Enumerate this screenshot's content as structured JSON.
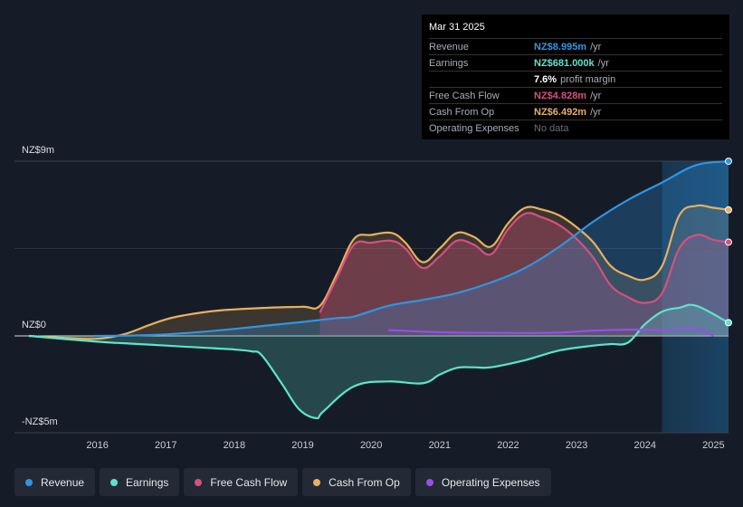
{
  "chart_data": {
    "type": "area",
    "y_axis": {
      "top_label": "NZ$9m",
      "zero_label": "NZ$0",
      "bottom_label": "-NZ$5m",
      "ylim": [
        -5,
        9
      ]
    },
    "x_axis": {
      "ticks": [
        "2016",
        "2017",
        "2018",
        "2019",
        "2020",
        "2021",
        "2022",
        "2023",
        "2024",
        "2025"
      ],
      "xlim": [
        2015.0,
        2025.22
      ]
    },
    "forecast_shade_from": 2024.25,
    "series": [
      {
        "name": "Revenue",
        "color": "#2f95e4",
        "points": [
          [
            2015.95,
            0.0
          ],
          [
            2016.5,
            0.02
          ],
          [
            2017.0,
            0.08
          ],
          [
            2017.5,
            0.2
          ],
          [
            2018.0,
            0.36
          ],
          [
            2018.5,
            0.54
          ],
          [
            2019.0,
            0.72
          ],
          [
            2019.5,
            0.92
          ],
          [
            2019.75,
            1.0
          ],
          [
            2020.25,
            1.55
          ],
          [
            2020.75,
            1.85
          ],
          [
            2021.25,
            2.2
          ],
          [
            2021.75,
            2.75
          ],
          [
            2022.25,
            3.5
          ],
          [
            2022.75,
            4.6
          ],
          [
            2023.25,
            5.9
          ],
          [
            2023.75,
            7.0
          ],
          [
            2024.25,
            7.9
          ],
          [
            2024.75,
            8.8
          ],
          [
            2025.22,
            8.995
          ]
        ]
      },
      {
        "name": "Earnings",
        "color": "#5ee3cb",
        "points": [
          [
            2015.0,
            0.0
          ],
          [
            2016.0,
            -0.3
          ],
          [
            2016.5,
            -0.4
          ],
          [
            2017.0,
            -0.5
          ],
          [
            2017.5,
            -0.6
          ],
          [
            2018.0,
            -0.7
          ],
          [
            2018.25,
            -0.8
          ],
          [
            2018.4,
            -1.0
          ],
          [
            2018.7,
            -2.5
          ],
          [
            2018.95,
            -3.8
          ],
          [
            2019.2,
            -4.25
          ],
          [
            2019.3,
            -3.9
          ],
          [
            2019.75,
            -2.6
          ],
          [
            2020.25,
            -2.35
          ],
          [
            2020.75,
            -2.45
          ],
          [
            2021.0,
            -2.0
          ],
          [
            2021.25,
            -1.65
          ],
          [
            2021.5,
            -1.62
          ],
          [
            2021.75,
            -1.62
          ],
          [
            2022.25,
            -1.25
          ],
          [
            2022.75,
            -0.75
          ],
          [
            2023.25,
            -0.5
          ],
          [
            2023.5,
            -0.42
          ],
          [
            2023.75,
            -0.35
          ],
          [
            2024.0,
            0.6
          ],
          [
            2024.25,
            1.25
          ],
          [
            2024.5,
            1.45
          ],
          [
            2024.75,
            1.55
          ],
          [
            2025.22,
            0.681
          ]
        ]
      },
      {
        "name": "Free Cash Flow",
        "color": "#d64f7f",
        "points": [
          [
            2019.25,
            1.2
          ],
          [
            2019.5,
            3.0
          ],
          [
            2019.75,
            4.7
          ],
          [
            2020.0,
            4.8
          ],
          [
            2020.3,
            4.9
          ],
          [
            2020.5,
            4.5
          ],
          [
            2020.75,
            3.5
          ],
          [
            2021.0,
            4.1
          ],
          [
            2021.25,
            4.9
          ],
          [
            2021.5,
            4.7
          ],
          [
            2021.75,
            4.2
          ],
          [
            2022.0,
            5.5
          ],
          [
            2022.25,
            6.3
          ],
          [
            2022.5,
            6.1
          ],
          [
            2022.75,
            5.7
          ],
          [
            2023.0,
            5.0
          ],
          [
            2023.25,
            4.0
          ],
          [
            2023.5,
            2.6
          ],
          [
            2023.75,
            2.0
          ],
          [
            2024.0,
            1.7
          ],
          [
            2024.25,
            2.2
          ],
          [
            2024.5,
            4.5
          ],
          [
            2024.75,
            5.2
          ],
          [
            2025.0,
            4.95
          ],
          [
            2025.22,
            4.828
          ]
        ]
      },
      {
        "name": "Cash From Op",
        "color": "#e8b05e",
        "points": [
          [
            2015.0,
            0.0
          ],
          [
            2015.5,
            -0.1
          ],
          [
            2016.0,
            -0.15
          ],
          [
            2016.4,
            0.1
          ],
          [
            2016.75,
            0.55
          ],
          [
            2017.0,
            0.85
          ],
          [
            2017.25,
            1.05
          ],
          [
            2017.75,
            1.3
          ],
          [
            2018.5,
            1.45
          ],
          [
            2019.0,
            1.5
          ],
          [
            2019.25,
            1.55
          ],
          [
            2019.5,
            3.2
          ],
          [
            2019.75,
            5.0
          ],
          [
            2020.0,
            5.2
          ],
          [
            2020.3,
            5.3
          ],
          [
            2020.5,
            4.8
          ],
          [
            2020.75,
            3.8
          ],
          [
            2021.0,
            4.5
          ],
          [
            2021.25,
            5.3
          ],
          [
            2021.5,
            5.1
          ],
          [
            2021.75,
            4.6
          ],
          [
            2022.0,
            5.8
          ],
          [
            2022.25,
            6.6
          ],
          [
            2022.5,
            6.5
          ],
          [
            2022.75,
            6.2
          ],
          [
            2023.0,
            5.6
          ],
          [
            2023.25,
            4.8
          ],
          [
            2023.5,
            3.6
          ],
          [
            2023.75,
            3.1
          ],
          [
            2024.0,
            2.9
          ],
          [
            2024.25,
            3.6
          ],
          [
            2024.5,
            6.2
          ],
          [
            2024.75,
            6.7
          ],
          [
            2025.0,
            6.6
          ],
          [
            2025.22,
            6.492
          ]
        ]
      },
      {
        "name": "Operating Expenses",
        "color": "#9b4de8",
        "points": [
          [
            2020.25,
            0.3
          ],
          [
            2020.75,
            0.22
          ],
          [
            2021.25,
            0.17
          ],
          [
            2021.75,
            0.16
          ],
          [
            2022.25,
            0.15
          ],
          [
            2022.75,
            0.17
          ],
          [
            2023.25,
            0.27
          ],
          [
            2023.75,
            0.32
          ],
          [
            2024.25,
            0.3
          ],
          [
            2024.75,
            0.35
          ],
          [
            2025.0,
            0.0
          ]
        ]
      }
    ]
  },
  "tooltip": {
    "date": "Mar 31 2025",
    "rows": [
      {
        "label": "Revenue",
        "value": "NZ$8.995m",
        "unit": "/yr",
        "color": "#2f95e4"
      },
      {
        "label": "Earnings",
        "value": "NZ$681.000k",
        "unit": "/yr",
        "color": "#5ee3cb"
      },
      {
        "label": "",
        "value": "7.6%",
        "unit": "profit margin",
        "color": "#ffffff"
      },
      {
        "label": "Free Cash Flow",
        "value": "NZ$4.828m",
        "unit": "/yr",
        "color": "#d64f7f"
      },
      {
        "label": "Cash From Op",
        "value": "NZ$6.492m",
        "unit": "/yr",
        "color": "#e8b05e"
      },
      {
        "label": "Operating Expenses",
        "value": "No data",
        "unit": "",
        "color": "#6b7079"
      }
    ]
  },
  "legend": [
    {
      "label": "Revenue",
      "color": "#2f95e4"
    },
    {
      "label": "Earnings",
      "color": "#5ee3cb"
    },
    {
      "label": "Free Cash Flow",
      "color": "#d64f7f"
    },
    {
      "label": "Cash From Op",
      "color": "#e8b05e"
    },
    {
      "label": "Operating Expenses",
      "color": "#9b4de8"
    }
  ]
}
